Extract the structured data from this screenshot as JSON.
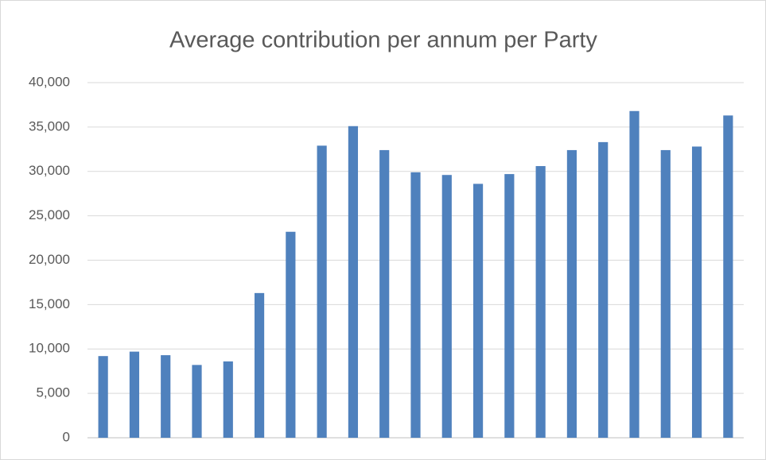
{
  "chart_data": {
    "type": "bar",
    "title": "Average contribution per annum per Party",
    "categories": [
      null,
      null,
      null,
      null,
      null,
      null,
      null,
      null,
      null,
      null,
      null,
      null,
      null,
      null,
      null,
      null,
      null,
      null,
      null,
      null,
      null
    ],
    "values": [
      9200,
      9700,
      9300,
      8200,
      8600,
      16300,
      23200,
      32900,
      35100,
      32400,
      29900,
      29600,
      28600,
      29700,
      30600,
      32400,
      33300,
      36800,
      32400,
      32800,
      36300
    ],
    "color": "#4f81bd",
    "ylim": [
      0,
      40000
    ],
    "yticks": [
      0,
      {
        "value": 5000,
        "label": "5,000"
      },
      {
        "value": 10000,
        "label": "10,000"
      },
      {
        "value": 15000,
        "label": "15,000"
      },
      {
        "value": 20000,
        "label": "20,000"
      },
      {
        "value": 25000,
        "label": "25,000"
      },
      {
        "value": 30000,
        "label": "30,000"
      },
      {
        "value": 35000,
        "label": "35,000"
      },
      {
        "value": 40000,
        "label": "40,000"
      }
    ],
    "grid": true
  }
}
